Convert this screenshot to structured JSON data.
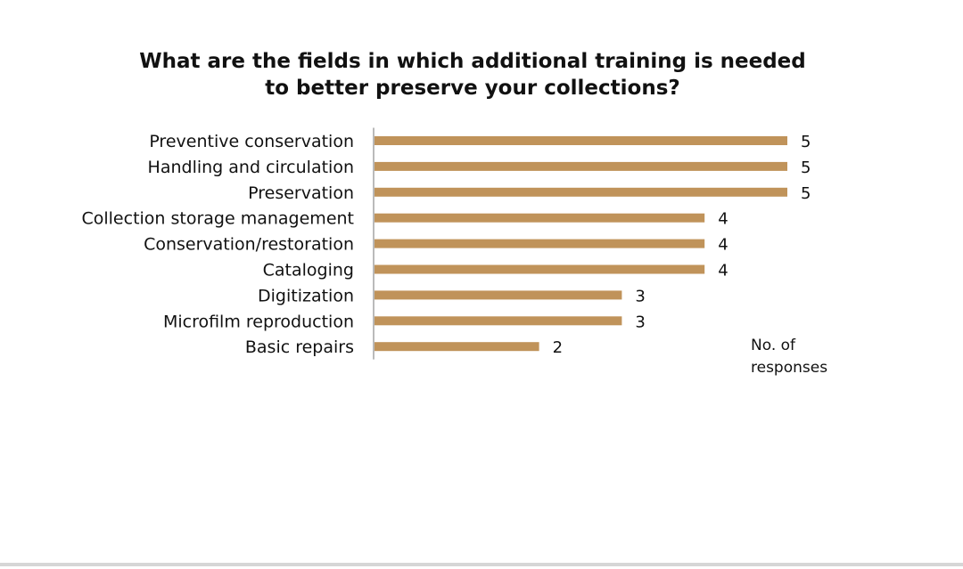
{
  "chart_data": {
    "type": "bar",
    "orientation": "horizontal",
    "title_line1": "What are the fields in which additional training is needed",
    "title_line2": "to better preserve your collections?",
    "categories": [
      "Preventive conservation",
      "Handling and circulation",
      "Preservation",
      "Collection storage management",
      "Conservation/restoration",
      "Cataloging",
      "Digitization",
      "Microfilm reproduction",
      "Basic repairs"
    ],
    "values": [
      5,
      5,
      5,
      4,
      4,
      4,
      3,
      3,
      2
    ],
    "unit_label_line1": "No. of",
    "unit_label_line2": "responses",
    "bar_color": "#c0935a",
    "data_labels": true,
    "grid": false,
    "xlim": [
      0,
      5
    ]
  }
}
